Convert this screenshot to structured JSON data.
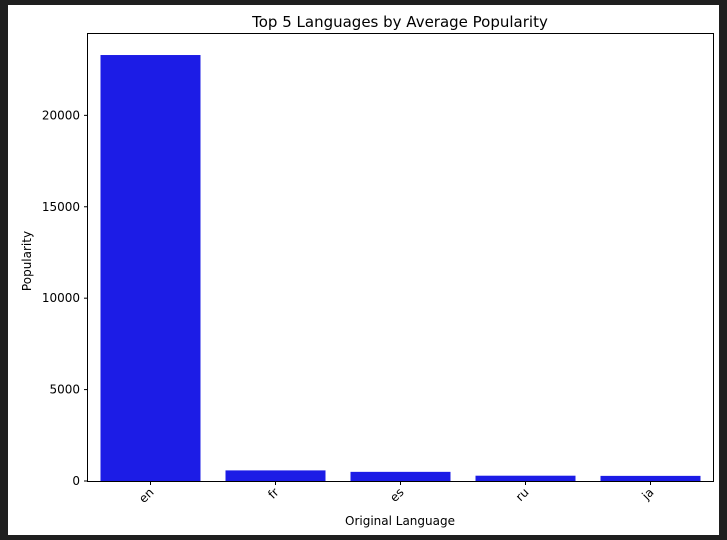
{
  "chart_data": {
    "type": "bar",
    "title": "Top 5 Languages by Average Popularity",
    "xlabel": "Original Language",
    "ylabel": "Popularity",
    "categories": [
      "en",
      "fr",
      "es",
      "ru",
      "ja"
    ],
    "values": [
      23300,
      580,
      500,
      290,
      280
    ],
    "ylim": [
      0,
      24450
    ],
    "yticks": [
      0,
      5000,
      10000,
      15000,
      20000
    ],
    "bar_color": "#1c1ce6",
    "grid": false,
    "legend": "none"
  }
}
